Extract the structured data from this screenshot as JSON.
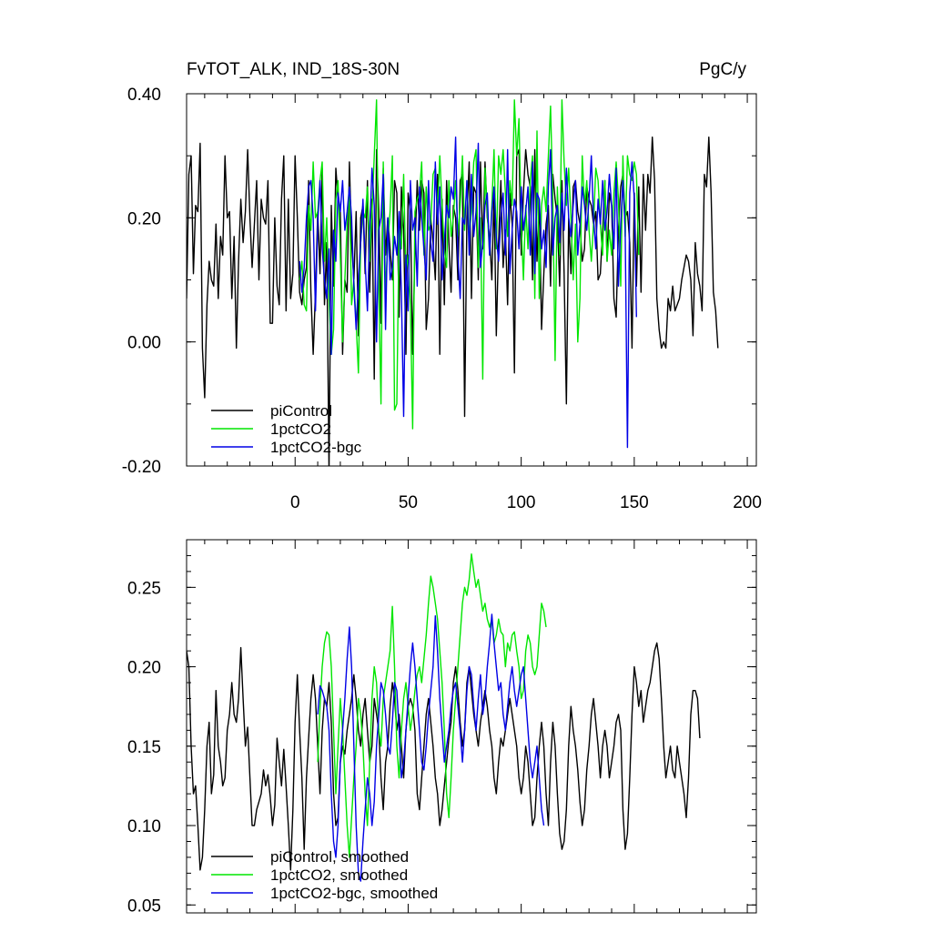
{
  "chart_data": [
    {
      "type": "line",
      "title": "FvTOT_ALK, IND_18S-30N",
      "units": "PgC/y",
      "xlim": [
        -48,
        204
      ],
      "ylim": [
        -0.2,
        0.4
      ],
      "xticks": [
        0,
        50,
        100,
        150,
        200
      ],
      "xtick_labels": [
        "0",
        "50",
        "100",
        "150",
        "200"
      ],
      "yticks": [
        -0.2,
        0.0,
        0.2,
        0.4
      ],
      "ytick_labels": [
        "-0.20",
        "0.00",
        "0.20",
        "0.40"
      ],
      "legend_position": "bottom-left",
      "grid": false,
      "series": [
        {
          "name": "piControl",
          "color": "#000000",
          "x_start": -48,
          "values": [
            0.07,
            0.27,
            0.3,
            0.11,
            0.22,
            0.21,
            0.32,
            -0.01,
            -0.09,
            0.06,
            0.13,
            0.1,
            0.09,
            0.19,
            0.07,
            0.17,
            0.14,
            0.3,
            0.2,
            0.21,
            0.07,
            0.17,
            -0.01,
            0.13,
            0.23,
            0.16,
            0.21,
            0.31,
            0.2,
            0.12,
            0.19,
            0.26,
            0.1,
            0.23,
            0.2,
            0.19,
            0.26,
            0.03,
            0.03,
            0.2,
            0.09,
            0.06,
            0.23,
            0.3,
            0.05,
            0.23,
            0.07,
            0.11,
            0.3,
            0.2,
            0.08,
            0.06,
            0.1,
            0.12,
            0.26,
            0.08,
            -0.02,
            0.08,
            0.21,
            0.11,
            0.28,
            0.06,
            0.16,
            -0.21,
            0.22,
            0.09,
            0.28,
            0.23,
            0.21,
            -0.02,
            0.1,
            0.08,
            0.29,
            0.16,
            0.1,
            0.21,
            0.01,
            0.2,
            0.22,
            0.11,
            0.26,
            0.08,
            0.23,
            -0.06,
            0.31,
            0.21,
            0.03,
            0.28,
            0.14,
            0.2,
            0.15,
            0.1,
            0.26,
            0.24,
            0.04,
            0.25,
            0.18,
            -0.02,
            0.24,
            0.21,
            -0.02,
            0.15,
            0.26,
            0.18,
            0.26,
            0.24,
            0.02,
            0.07,
            0.2,
            0.16,
            0.1,
            0.27,
            -0.02,
            0.23,
            0.06,
            0.26,
            0.16,
            0.08,
            0.22,
            0.2,
            0.1,
            0.26,
            0.27,
            -0.12,
            0.2,
            0.29,
            0.07,
            0.25,
            0.24,
            0.1,
            0.29,
            0.15,
            0.29,
            0.2,
            0.17,
            0.1,
            0.24,
            0.01,
            0.16,
            0.26,
            0.12,
            0.18,
            0.06,
            0.24,
            0.19,
            -0.05,
            0.3,
            0.31,
            0.14,
            0.24,
            0.31,
            0.27,
            0.25,
            0.1,
            0.31,
            0.13,
            0.23,
            0.02,
            0.11,
            0.19,
            0.22,
            0.09,
            0.27,
            0.23,
            0.2,
            0.09,
            0.26,
            0.11,
            -0.1,
            0.2,
            0.11,
            0.25,
            0.26,
            0.21,
            0.19,
            0.13,
            0.15,
            0.25,
            0.23,
            0.22,
            0.19,
            0.21,
            0.1,
            0.11,
            0.18,
            0.26,
            0.13,
            0.24,
            0.22,
            0.07,
            0.04,
            0.18,
            0.25,
            0.27,
            0.2,
            0.21,
            0.16,
            -0.01,
            0.24,
            0.09,
            0.25,
            0.08,
            0.27,
            0.18,
            0.27,
            0.24,
            0.33,
            0.26,
            0.07,
            0.02,
            -0.01,
            0.0,
            -0.01,
            0.07,
            0.05,
            0.09,
            0.05,
            0.06,
            0.07,
            0.1,
            0.12,
            0.14,
            0.13,
            0.1,
            0.01,
            0.16,
            0.11,
            0.09,
            0.05,
            0.27,
            0.25,
            0.33,
            0.24,
            0.08,
            0.05,
            -0.01
          ]
        },
        {
          "name": "1pctCO2",
          "color": "#00e600",
          "x_start": 2,
          "values": [
            0.1,
            0.13,
            0.06,
            0.05,
            0.22,
            0.18,
            0.29,
            0.2,
            0.21,
            0.26,
            0.29,
            0.13,
            0.2,
            0.07,
            -0.02,
            0.02,
            0.23,
            0.26,
            0.14,
            0.0,
            0.1,
            0.19,
            0.25,
            0.06,
            0.1,
            0.03,
            -0.05,
            0.16,
            0.21,
            0.2,
            0.25,
            0.13,
            0.21,
            0.3,
            0.39,
            0.09,
            -0.1,
            0.29,
            0.08,
            0.16,
            0.21,
            0.3,
            -0.11,
            -0.1,
            0.19,
            0.15,
            0.27,
            0.11,
            0.14,
            0.06,
            -0.14,
            0.21,
            0.23,
            0.24,
            0.29,
            0.14,
            0.25,
            0.18,
            0.19,
            0.27,
            0.28,
            0.21,
            0.3,
            0.22,
            0.15,
            0.12,
            0.26,
            0.17,
            0.2,
            0.26,
            0.17,
            0.22,
            0.3,
            0.18,
            0.26,
            0.17,
            0.21,
            0.29,
            0.31,
            0.12,
            0.2,
            -0.06,
            0.28,
            0.21,
            0.14,
            0.22,
            0.31,
            0.15,
            0.3,
            0.27,
            0.31,
            0.24,
            0.17,
            0.26,
            0.22,
            0.39,
            0.3,
            0.36,
            0.19,
            0.1,
            0.22,
            0.15,
            0.26,
            0.3,
            0.07,
            0.34,
            0.07,
            0.22,
            0.25,
            0.21,
            0.3,
            0.38,
            0.23,
            -0.03,
            0.25,
            0.14,
            0.39,
            0.29,
            0.22,
            0.28,
            0.2,
            0.1,
            0.19,
            0.0,
            0.07,
            0.3,
            0.22,
            0.26,
            0.18,
            0.13,
            0.19,
            0.28,
            0.26,
            0.19,
            0.14,
            0.26,
            0.13,
            0.18,
            0.14,
            0.24,
            0.29,
            0.23,
            0.09,
            0.3,
            0.17,
            0.3,
            0.27,
            0.26,
            0.29,
            0.27,
            0.14
          ]
        },
        {
          "name": "1pctCO2-bgc",
          "color": "#0000e6",
          "x_start": 2,
          "values": [
            0.13,
            0.08,
            0.12,
            0.2,
            0.25,
            0.26,
            0.2,
            0.05,
            0.19,
            0.26,
            0.15,
            0.1,
            0.07,
            0.15,
            -0.02,
            0.18,
            0.13,
            0.24,
            0.21,
            0.26,
            0.18,
            0.21,
            0.25,
            0.2,
            0.09,
            0.02,
            0.1,
            0.16,
            0.23,
            0.13,
            0.05,
            0.18,
            0.28,
            0.22,
            0.0,
            0.18,
            0.2,
            0.27,
            0.02,
            0.2,
            0.1,
            0.12,
            0.17,
            0.14,
            0.21,
            0.08,
            -0.12,
            0.14,
            0.05,
            0.26,
            0.18,
            0.2,
            0.09,
            0.25,
            0.2,
            0.15,
            0.1,
            0.26,
            0.16,
            0.13,
            0.29,
            0.19,
            0.25,
            0.1,
            0.16,
            0.22,
            0.2,
            0.25,
            0.23,
            0.33,
            0.14,
            0.07,
            0.2,
            0.19,
            0.26,
            0.14,
            0.27,
            0.17,
            0.21,
            0.32,
            0.12,
            0.16,
            0.22,
            0.24,
            0.14,
            0.21,
            0.25,
            0.17,
            0.13,
            0.2,
            0.24,
            0.14,
            0.31,
            0.11,
            0.18,
            0.23,
            0.21,
            0.15,
            0.25,
            0.18,
            0.21,
            0.25,
            0.14,
            0.29,
            0.11,
            0.24,
            0.23,
            0.15,
            0.18,
            0.12,
            0.25,
            0.31,
            0.14,
            0.2,
            0.22,
            0.16,
            0.24,
            0.18,
            0.28,
            0.2,
            0.17,
            0.22,
            0.26,
            0.14,
            0.19,
            0.25,
            0.22,
            0.18,
            0.23,
            0.3,
            0.2,
            0.15,
            0.23,
            0.19,
            0.26,
            0.18,
            0.21,
            0.27,
            0.22,
            0.15,
            0.28,
            0.09,
            0.19,
            0.26,
            0.18,
            -0.17,
            0.24,
            0.29,
            0.23,
            0.04
          ]
        }
      ]
    },
    {
      "type": "line",
      "title": "",
      "xlim": [
        -48,
        204
      ],
      "ylim": [
        0.045,
        0.28
      ],
      "xticks": [
        0,
        50,
        100,
        150,
        200
      ],
      "xtick_labels": [],
      "yticks": [
        0.05,
        0.1,
        0.15,
        0.2,
        0.25
      ],
      "ytick_labels": [
        "0.05",
        "0.10",
        "0.15",
        "0.20",
        "0.25"
      ],
      "legend_position": "bottom-left",
      "grid": false,
      "series": [
        {
          "name": "piControl, smoothed",
          "color": "#000000",
          "x_start": -48,
          "values": [
            0.21,
            0.2,
            0.15,
            0.12,
            0.125,
            0.1,
            0.072,
            0.08,
            0.11,
            0.15,
            0.165,
            0.12,
            0.132,
            0.185,
            0.15,
            0.14,
            0.125,
            0.13,
            0.16,
            0.17,
            0.19,
            0.17,
            0.165,
            0.18,
            0.212,
            0.18,
            0.15,
            0.162,
            0.13,
            0.1,
            0.1,
            0.11,
            0.115,
            0.12,
            0.135,
            0.125,
            0.132,
            0.118,
            0.1,
            0.113,
            0.155,
            0.14,
            0.125,
            0.148,
            0.125,
            0.1,
            0.072,
            0.11,
            0.165,
            0.195,
            0.16,
            0.13,
            0.085,
            0.13,
            0.155,
            0.18,
            0.195,
            0.18,
            0.15,
            0.12,
            0.16,
            0.18,
            0.175,
            0.19,
            0.165,
            0.12,
            0.1,
            0.105,
            0.14,
            0.15,
            0.145,
            0.16,
            0.17,
            0.18,
            0.195,
            0.18,
            0.16,
            0.15,
            0.17,
            0.18,
            0.16,
            0.14,
            0.15,
            0.18,
            0.17,
            0.16,
            0.13,
            0.11,
            0.14,
            0.15,
            0.175,
            0.19,
            0.18,
            0.16,
            0.17,
            0.15,
            0.13,
            0.16,
            0.175,
            0.18,
            0.175,
            0.16,
            0.12,
            0.11,
            0.13,
            0.15,
            0.17,
            0.18,
            0.165,
            0.15,
            0.13,
            0.12,
            0.1,
            0.11,
            0.125,
            0.14,
            0.155,
            0.165,
            0.19,
            0.2,
            0.185,
            0.165,
            0.15,
            0.16,
            0.19,
            0.2,
            0.185,
            0.17,
            0.16,
            0.15,
            0.165,
            0.175,
            0.185,
            0.175,
            0.16,
            0.15,
            0.13,
            0.12,
            0.14,
            0.155,
            0.15,
            0.16,
            0.17,
            0.18,
            0.17,
            0.16,
            0.15,
            0.13,
            0.12,
            0.13,
            0.15,
            0.14,
            0.12,
            0.1,
            0.105,
            0.13,
            0.15,
            0.165,
            0.15,
            0.12,
            0.1,
            0.14,
            0.165,
            0.15,
            0.12,
            0.095,
            0.085,
            0.09,
            0.11,
            0.15,
            0.175,
            0.16,
            0.15,
            0.135,
            0.115,
            0.1,
            0.11,
            0.135,
            0.15,
            0.17,
            0.18,
            0.165,
            0.15,
            0.13,
            0.15,
            0.16,
            0.15,
            0.13,
            0.14,
            0.15,
            0.165,
            0.17,
            0.16,
            0.11,
            0.085,
            0.095,
            0.13,
            0.17,
            0.2,
            0.19,
            0.175,
            0.185,
            0.165,
            0.175,
            0.185,
            0.19,
            0.2,
            0.21,
            0.215,
            0.205,
            0.18,
            0.15,
            0.13,
            0.14,
            0.15,
            0.135,
            0.13,
            0.15,
            0.14,
            0.13,
            0.12,
            0.105,
            0.13,
            0.17,
            0.185,
            0.185,
            0.18,
            0.155
          ]
        },
        {
          "name": "1pctCO2, smoothed",
          "color": "#00e600",
          "x_start": 10,
          "values": [
            0.14,
            0.175,
            0.2,
            0.215,
            0.222,
            0.22,
            0.2,
            0.16,
            0.12,
            0.15,
            0.18,
            0.16,
            0.13,
            0.1,
            0.08,
            0.105,
            0.13,
            0.15,
            0.18,
            0.17,
            0.15,
            0.12,
            0.1,
            0.14,
            0.18,
            0.2,
            0.19,
            0.16,
            0.15,
            0.18,
            0.19,
            0.2,
            0.21,
            0.238,
            0.2,
            0.15,
            0.13,
            0.16,
            0.18,
            0.19,
            0.175,
            0.16,
            0.17,
            0.185,
            0.195,
            0.2,
            0.19,
            0.205,
            0.22,
            0.24,
            0.257,
            0.25,
            0.24,
            0.23,
            0.21,
            0.19,
            0.16,
            0.12,
            0.105,
            0.13,
            0.16,
            0.18,
            0.2,
            0.22,
            0.24,
            0.25,
            0.245,
            0.255,
            0.271,
            0.26,
            0.25,
            0.255,
            0.245,
            0.235,
            0.24,
            0.23,
            0.225,
            0.23,
            0.215,
            0.22,
            0.23,
            0.222,
            0.22,
            0.2,
            0.215,
            0.21,
            0.22,
            0.222,
            0.21,
            0.2,
            0.18,
            0.185,
            0.21,
            0.22,
            0.215,
            0.2,
            0.195,
            0.2,
            0.22,
            0.24,
            0.235,
            0.225
          ]
        },
        {
          "name": "1pctCO2-bgc, smoothed",
          "color": "#0000e6",
          "x_start": 10,
          "values": [
            0.17,
            0.188,
            0.185,
            0.18,
            0.175,
            0.16,
            0.12,
            0.09,
            0.08,
            0.1,
            0.14,
            0.16,
            0.18,
            0.205,
            0.225,
            0.2,
            0.15,
            0.1,
            0.07,
            0.065,
            0.09,
            0.11,
            0.13,
            0.12,
            0.1,
            0.115,
            0.15,
            0.17,
            0.19,
            0.185,
            0.17,
            0.15,
            0.145,
            0.165,
            0.19,
            0.185,
            0.16,
            0.13,
            0.14,
            0.16,
            0.18,
            0.2,
            0.215,
            0.2,
            0.18,
            0.16,
            0.14,
            0.135,
            0.15,
            0.17,
            0.185,
            0.2,
            0.232,
            0.21,
            0.18,
            0.16,
            0.14,
            0.15,
            0.16,
            0.175,
            0.185,
            0.19,
            0.175,
            0.16,
            0.14,
            0.16,
            0.185,
            0.2,
            0.195,
            0.175,
            0.16,
            0.18,
            0.195,
            0.17,
            0.18,
            0.2,
            0.215,
            0.233,
            0.215,
            0.2,
            0.185,
            0.19,
            0.17,
            0.16,
            0.175,
            0.19,
            0.2,
            0.185,
            0.175,
            0.185,
            0.195,
            0.2,
            0.18,
            0.16,
            0.14,
            0.13,
            0.14,
            0.15,
            0.13,
            0.11,
            0.1
          ]
        }
      ]
    }
  ]
}
